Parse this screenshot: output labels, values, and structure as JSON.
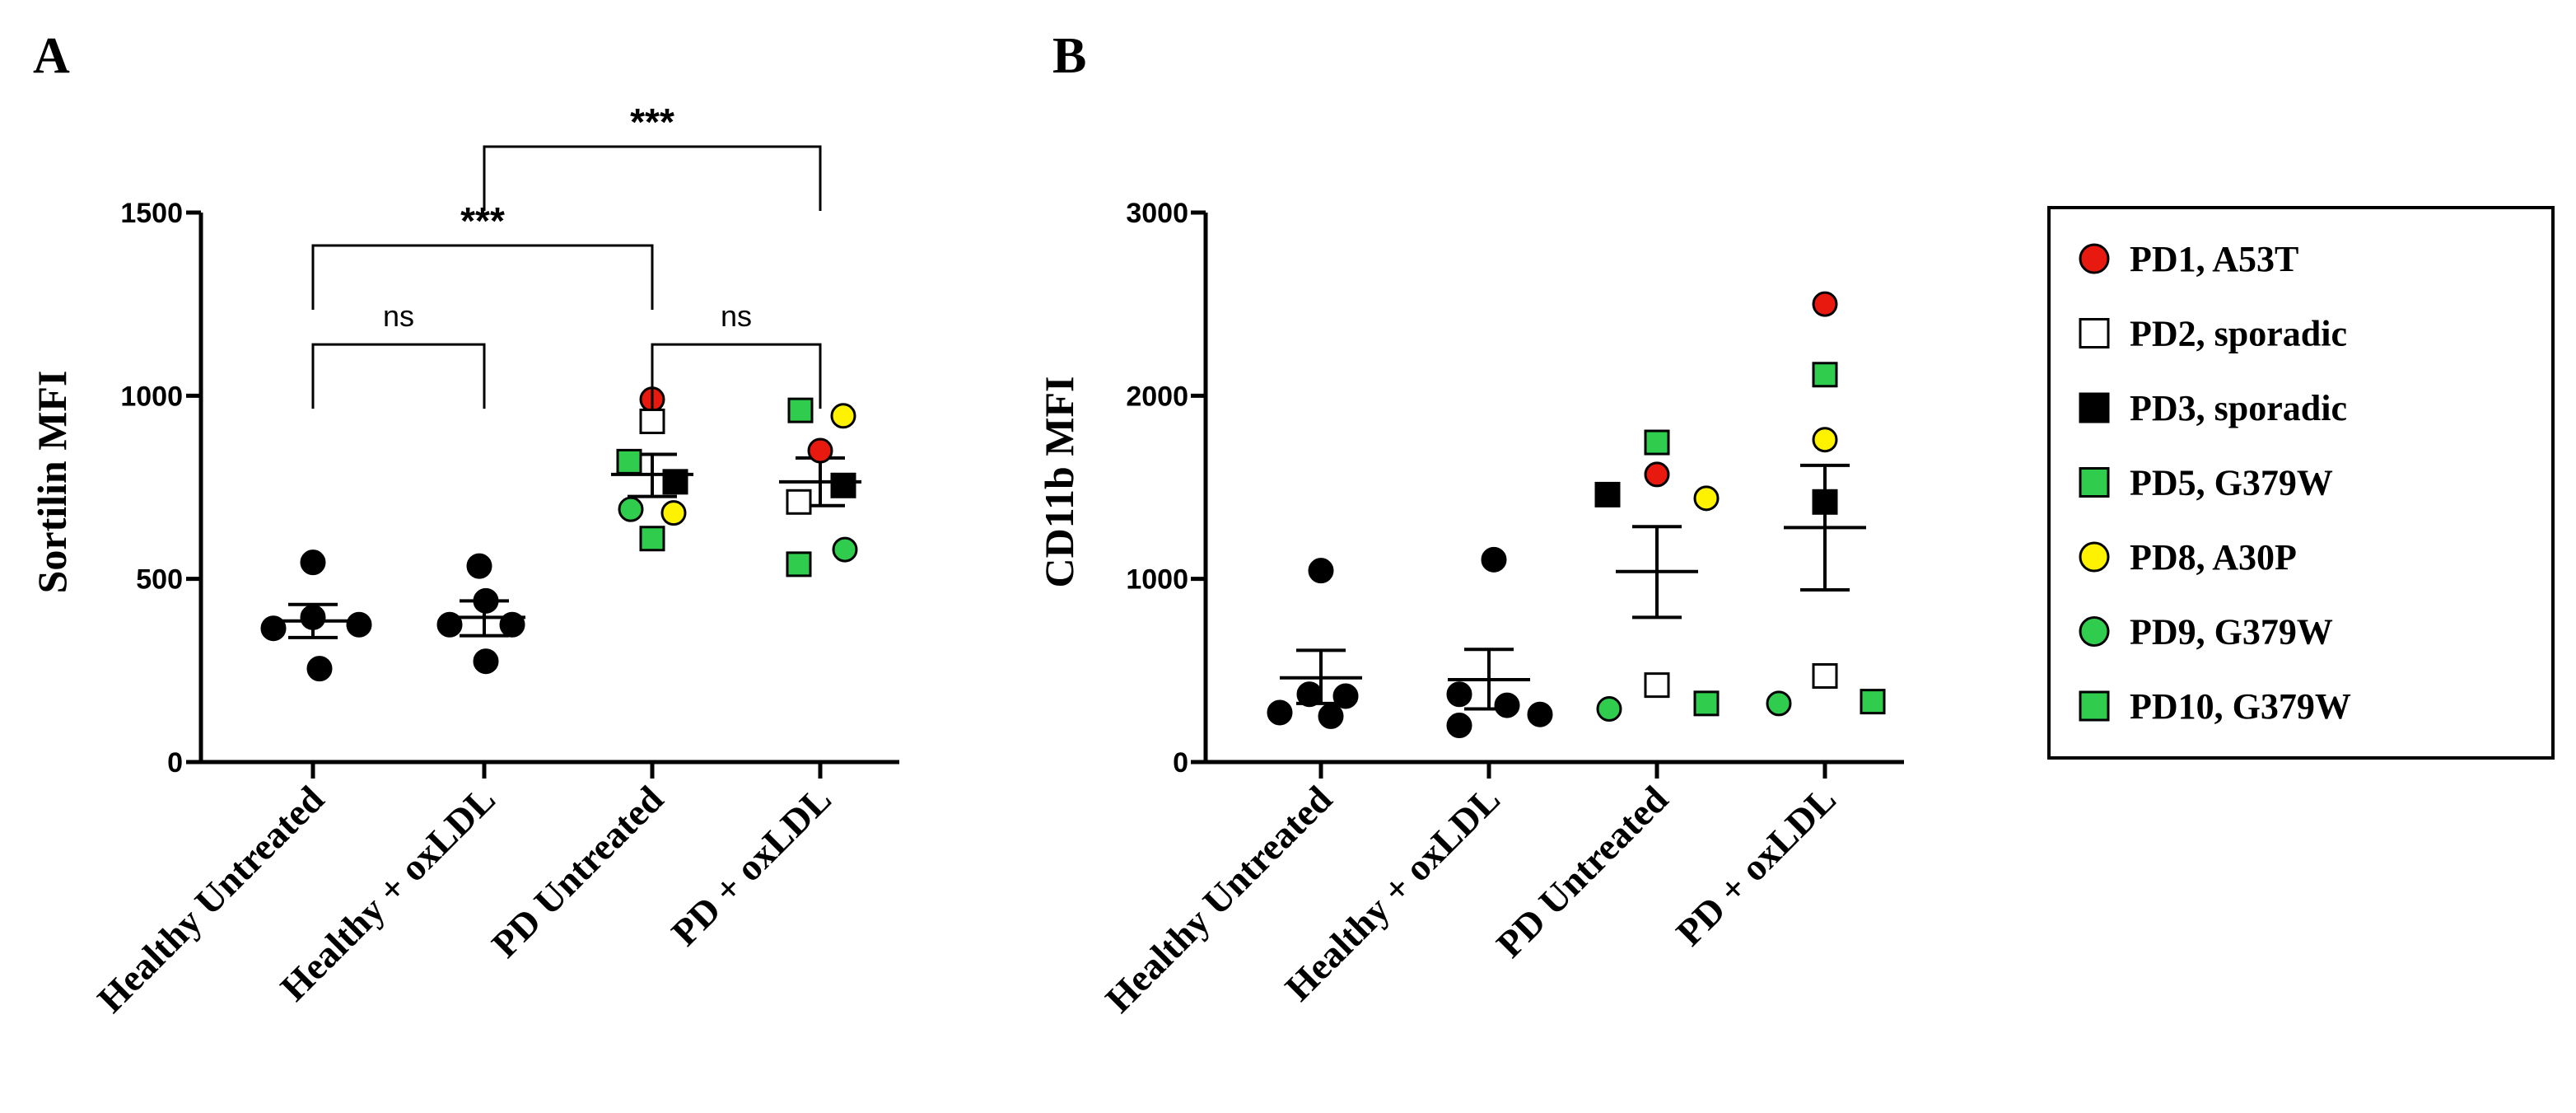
{
  "figure": {
    "legend": [
      {
        "id": "PD1",
        "label": "PD1, A53T",
        "shape": "circle",
        "fill": "#e8190f",
        "stroke": "#000000"
      },
      {
        "id": "PD2",
        "label": "PD2, sporadic",
        "shape": "square",
        "fill": "#ffffff",
        "stroke": "#000000"
      },
      {
        "id": "PD3",
        "label": "PD3, sporadic",
        "shape": "square",
        "fill": "#000000",
        "stroke": "#000000"
      },
      {
        "id": "PD5",
        "label": "PD5, G379W",
        "shape": "square",
        "fill": "#2fcc4e",
        "stroke": "#000000"
      },
      {
        "id": "PD8",
        "label": "PD8, A30P",
        "shape": "circle",
        "fill": "#fff200",
        "stroke": "#000000"
      },
      {
        "id": "PD9",
        "label": "PD9, G379W",
        "shape": "circle",
        "fill": "#2fcc4e",
        "stroke": "#000000"
      },
      {
        "id": "PD10",
        "label": "PD10, G379W",
        "shape": "square",
        "fill": "#2fcc4e",
        "stroke": "#000000"
      }
    ],
    "healthy_marker": {
      "shape": "circle",
      "fill": "#000000"
    }
  },
  "chart_data": [
    {
      "panel": "A",
      "type": "scatter",
      "title": "",
      "xlabel": "",
      "ylabel": "Sortilin MFI",
      "ylim": [
        0,
        1500
      ],
      "yticks": [
        "0",
        "500",
        "1000",
        "1500"
      ],
      "categories": [
        "Healthy Untreated",
        "Healthy + oxLDL",
        "PD Untreated",
        "PD + oxLDL"
      ],
      "groups": [
        {
          "category": "Healthy Untreated",
          "mean": 385,
          "sem_low": 340,
          "sem_high": 430,
          "points": [
            {
              "id": "H",
              "y": 545
            },
            {
              "id": "H",
              "y": 395
            },
            {
              "id": "H",
              "y": 375
            },
            {
              "id": "H",
              "y": 365
            },
            {
              "id": "H",
              "y": 255
            }
          ]
        },
        {
          "category": "Healthy + oxLDL",
          "mean": 395,
          "sem_low": 345,
          "sem_high": 440,
          "points": [
            {
              "id": "H",
              "y": 535
            },
            {
              "id": "H",
              "y": 440
            },
            {
              "id": "H",
              "y": 375
            },
            {
              "id": "H",
              "y": 375
            },
            {
              "id": "H",
              "y": 275
            }
          ]
        },
        {
          "category": "PD Untreated",
          "mean": 785,
          "sem_low": 725,
          "sem_high": 840,
          "points": [
            {
              "id": "PD1",
              "y": 990
            },
            {
              "id": "PD2",
              "y": 930
            },
            {
              "id": "PD5",
              "y": 820
            },
            {
              "id": "PD3",
              "y": 765
            },
            {
              "id": "PD9",
              "y": 690
            },
            {
              "id": "PD8",
              "y": 680
            },
            {
              "id": "PD10",
              "y": 610
            }
          ]
        },
        {
          "category": "PD + oxLDL",
          "mean": 765,
          "sem_low": 700,
          "sem_high": 830,
          "points": [
            {
              "id": "PD5",
              "y": 960
            },
            {
              "id": "PD8",
              "y": 945
            },
            {
              "id": "PD1",
              "y": 850
            },
            {
              "id": "PD3",
              "y": 755
            },
            {
              "id": "PD2",
              "y": 710
            },
            {
              "id": "PD9",
              "y": 580
            },
            {
              "id": "PD10",
              "y": 540
            }
          ]
        }
      ],
      "comparisons": [
        {
          "from": "Healthy Untreated",
          "to": "Healthy + oxLDL",
          "label": "ns",
          "y": 1140
        },
        {
          "from": "PD Untreated",
          "to": "PD + oxLDL",
          "label": "ns",
          "y": 1140
        },
        {
          "from": "Healthy Untreated",
          "to": "PD Untreated",
          "label": "***",
          "y": 1410
        },
        {
          "from": "Healthy + oxLDL",
          "to": "PD + oxLDL",
          "label": "***",
          "y": 1680
        }
      ]
    },
    {
      "panel": "B",
      "type": "scatter",
      "title": "",
      "xlabel": "",
      "ylabel": "CD11b MFI",
      "ylim": [
        0,
        3000
      ],
      "yticks": [
        "0",
        "1000",
        "2000",
        "3000"
      ],
      "categories": [
        "Healthy Untreated",
        "Healthy + oxLDL",
        "PD Untreated",
        "PD + oxLDL"
      ],
      "groups": [
        {
          "category": "Healthy Untreated",
          "mean": 460,
          "sem_low": 320,
          "sem_high": 610,
          "points": [
            {
              "id": "H",
              "y": 1045
            },
            {
              "id": "H",
              "y": 370
            },
            {
              "id": "H",
              "y": 360
            },
            {
              "id": "H",
              "y": 270
            },
            {
              "id": "H",
              "y": 250
            }
          ]
        },
        {
          "category": "Healthy + oxLDL",
          "mean": 450,
          "sem_low": 290,
          "sem_high": 615,
          "points": [
            {
              "id": "H",
              "y": 1105
            },
            {
              "id": "H",
              "y": 370
            },
            {
              "id": "H",
              "y": 310
            },
            {
              "id": "H",
              "y": 260
            },
            {
              "id": "H",
              "y": 200
            }
          ]
        },
        {
          "category": "PD Untreated",
          "mean": 1040,
          "sem_low": 790,
          "sem_high": 1285,
          "points": [
            {
              "id": "PD10",
              "y": 1745
            },
            {
              "id": "PD1",
              "y": 1570
            },
            {
              "id": "PD3",
              "y": 1460
            },
            {
              "id": "PD8",
              "y": 1440
            },
            {
              "id": "PD2",
              "y": 420
            },
            {
              "id": "PD5",
              "y": 320
            },
            {
              "id": "PD9",
              "y": 290
            }
          ]
        },
        {
          "category": "PD + oxLDL",
          "mean": 1280,
          "sem_low": 940,
          "sem_high": 1620,
          "points": [
            {
              "id": "PD1",
              "y": 2500
            },
            {
              "id": "PD5",
              "y": 2115
            },
            {
              "id": "PD8",
              "y": 1760
            },
            {
              "id": "PD3",
              "y": 1420
            },
            {
              "id": "PD2",
              "y": 470
            },
            {
              "id": "PD10",
              "y": 330
            },
            {
              "id": "PD9",
              "y": 320
            }
          ]
        }
      ],
      "comparisons": []
    }
  ]
}
